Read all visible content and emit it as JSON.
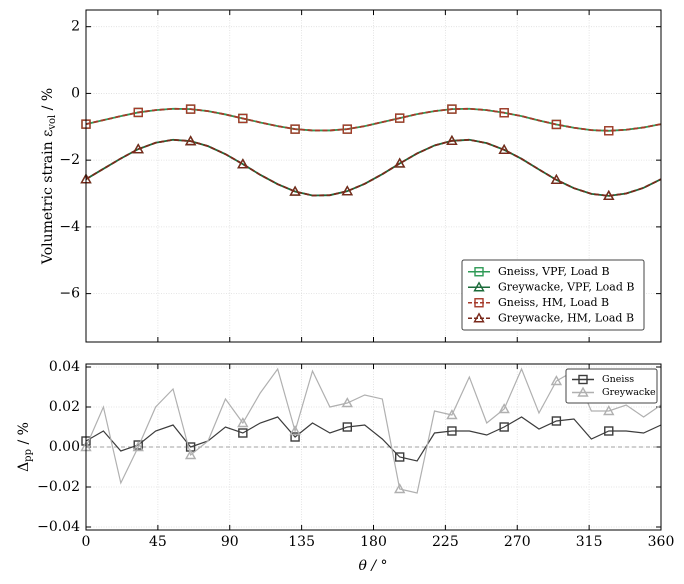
{
  "chart_data": [
    {
      "type": "line",
      "ylabel": {
        "main": "Volumetric strain ε",
        "sub": "vol",
        "unit": " / %"
      },
      "x": [
        0,
        10.9,
        21.8,
        32.7,
        43.6,
        54.5,
        65.5,
        76.4,
        87.3,
        98.2,
        109.1,
        120,
        130.9,
        141.8,
        152.7,
        163.6,
        174.5,
        185.5,
        196.4,
        207.3,
        218.2,
        229.1,
        240,
        250.9,
        261.8,
        272.7,
        283.6,
        294.5,
        305.5,
        316.4,
        327.3,
        338.2,
        349.1,
        360
      ],
      "xlim": [
        0,
        360
      ],
      "ylim": [
        -7.45,
        2.5
      ],
      "yticks": [
        {
          "value": -6,
          "label": "−6"
        },
        {
          "value": -4,
          "label": "−4"
        },
        {
          "value": -2,
          "label": "−2"
        },
        0,
        2
      ],
      "grid": true,
      "legend": "lower right",
      "series": [
        {
          "name": "Gneiss, VPF, Load B",
          "color": "#2e9a55",
          "marker": "square",
          "dash": false,
          "values": [
            -0.92,
            -0.8,
            -0.68,
            -0.57,
            -0.5,
            -0.46,
            -0.47,
            -0.53,
            -0.63,
            -0.75,
            -0.87,
            -0.98,
            -1.07,
            -1.11,
            -1.11,
            -1.07,
            -0.98,
            -0.86,
            -0.74,
            -0.62,
            -0.53,
            -0.47,
            -0.46,
            -0.5,
            -0.58,
            -0.68,
            -0.81,
            -0.93,
            -1.03,
            -1.1,
            -1.12,
            -1.09,
            -1.02,
            -0.92
          ]
        },
        {
          "name": "Greywacke, VPF, Load B",
          "color": "#1b6b3a",
          "marker": "triangle",
          "dash": false,
          "values": [
            -2.57,
            -2.26,
            -1.95,
            -1.67,
            -1.48,
            -1.39,
            -1.43,
            -1.58,
            -1.82,
            -2.12,
            -2.44,
            -2.72,
            -2.94,
            -3.06,
            -3.05,
            -2.93,
            -2.71,
            -2.42,
            -2.1,
            -1.8,
            -1.56,
            -1.42,
            -1.39,
            -1.49,
            -1.69,
            -1.96,
            -2.28,
            -2.59,
            -2.84,
            -3.01,
            -3.07,
            -3.0,
            -2.83,
            -2.57
          ]
        },
        {
          "name": "Gneiss, HM, Load B",
          "color": "#a63a2a",
          "marker": "square",
          "dash": true,
          "values": [
            -0.92,
            -0.8,
            -0.68,
            -0.57,
            -0.5,
            -0.46,
            -0.47,
            -0.53,
            -0.63,
            -0.75,
            -0.87,
            -0.98,
            -1.07,
            -1.11,
            -1.11,
            -1.07,
            -0.98,
            -0.86,
            -0.74,
            -0.62,
            -0.53,
            -0.47,
            -0.46,
            -0.5,
            -0.58,
            -0.68,
            -0.81,
            -0.93,
            -1.03,
            -1.1,
            -1.12,
            -1.09,
            -1.02,
            -0.92
          ]
        },
        {
          "name": "Greywacke, HM, Load B",
          "color": "#7a2a1c",
          "marker": "triangle",
          "dash": true,
          "values": [
            -2.57,
            -2.26,
            -1.95,
            -1.67,
            -1.48,
            -1.39,
            -1.43,
            -1.58,
            -1.82,
            -2.12,
            -2.44,
            -2.72,
            -2.94,
            -3.06,
            -3.05,
            -2.93,
            -2.71,
            -2.42,
            -2.1,
            -1.8,
            -1.56,
            -1.42,
            -1.39,
            -1.49,
            -1.69,
            -1.96,
            -2.28,
            -2.59,
            -2.84,
            -3.01,
            -3.07,
            -3.0,
            -2.83,
            -2.57
          ]
        }
      ]
    },
    {
      "type": "line",
      "ylabel": {
        "main": "Δ",
        "sub": "pp",
        "unit": " / %"
      },
      "xlabel": "θ / °",
      "x": [
        0,
        10.9,
        21.8,
        32.7,
        43.6,
        54.5,
        65.5,
        76.4,
        87.3,
        98.2,
        109.1,
        120,
        130.9,
        141.8,
        152.7,
        163.6,
        174.5,
        185.5,
        196.4,
        207.3,
        218.2,
        229.1,
        240,
        250.9,
        261.8,
        272.7,
        283.6,
        294.5,
        305.5,
        316.4,
        327.3,
        338.2,
        349.1,
        360
      ],
      "xlim": [
        0,
        360
      ],
      "xticks": [
        0,
        45,
        90,
        135,
        180,
        225,
        270,
        315,
        360
      ],
      "ylim": [
        -0.0415,
        0.0415
      ],
      "yticks": [
        {
          "value": -0.04,
          "label": "−0.04"
        },
        {
          "value": -0.02,
          "label": "−0.02"
        },
        {
          "value": 0,
          "label": "0.00"
        },
        {
          "value": 0.02,
          "label": "0.02"
        },
        {
          "value": 0.04,
          "label": "0.04"
        }
      ],
      "grid": true,
      "legend": "upper right",
      "series": [
        {
          "name": "Gneiss",
          "color": "#3c3c3c",
          "marker": "square",
          "dash": false,
          "values": [
            0.003,
            0.008,
            -0.002,
            0.001,
            0.008,
            0.011,
            0.0,
            0.003,
            0.01,
            0.007,
            0.012,
            0.015,
            0.005,
            0.012,
            0.007,
            0.01,
            0.011,
            0.004,
            -0.005,
            -0.007,
            0.007,
            0.008,
            0.008,
            0.006,
            0.01,
            0.015,
            0.009,
            0.013,
            0.014,
            0.004,
            0.008,
            0.008,
            0.007,
            0.011
          ]
        },
        {
          "name": "Greywacke",
          "color": "#b0b0b0",
          "marker": "triangle",
          "dash": false,
          "values": [
            0.0,
            0.02,
            -0.018,
            0.0,
            0.02,
            0.029,
            -0.004,
            0.003,
            0.024,
            0.012,
            0.027,
            0.039,
            0.008,
            0.038,
            0.02,
            0.022,
            0.026,
            0.024,
            -0.021,
            -0.023,
            0.018,
            0.016,
            0.035,
            0.012,
            0.019,
            0.039,
            0.017,
            0.033,
            0.038,
            0.018,
            0.018,
            0.021,
            0.015,
            0.021
          ]
        }
      ]
    }
  ]
}
